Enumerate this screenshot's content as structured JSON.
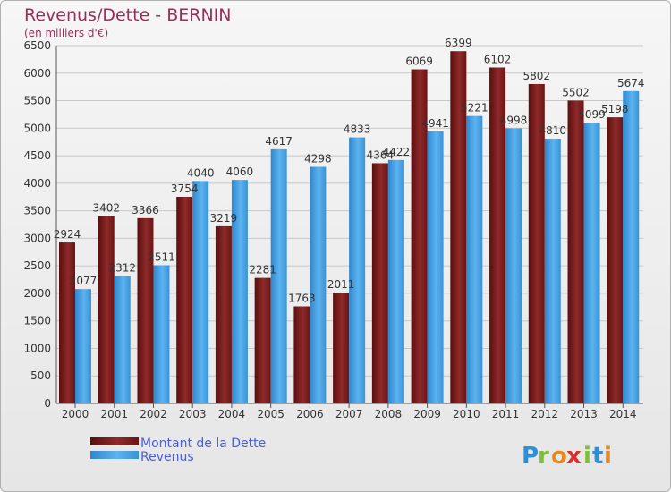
{
  "chart_data": {
    "type": "bar",
    "title": "Revenus/Dette - BERNIN",
    "subtitle": "(en milliers d'€)",
    "categories": [
      "2000",
      "2001",
      "2002",
      "2003",
      "2004",
      "2005",
      "2006",
      "2007",
      "2008",
      "2009",
      "2010",
      "2011",
      "2012",
      "2013",
      "2014"
    ],
    "series": [
      {
        "name": "Montant de la Dette",
        "color": "#7a1b1b",
        "values": [
          2924,
          3402,
          3366,
          3754,
          3219,
          2281,
          1763,
          2011,
          4364,
          6069,
          6399,
          6102,
          5802,
          5502,
          5198
        ],
        "labels": [
          "2924",
          "3402",
          "3366",
          "3754",
          "3219",
          "2281",
          "1763",
          "2011",
          "4364",
          "6069",
          "6399",
          "6102",
          "5802",
          "5502",
          "5198"
        ]
      },
      {
        "name": "Revenus",
        "color": "#4aa6e8",
        "values": [
          2077,
          2312,
          2511,
          4040,
          4060,
          4617,
          4298,
          4833,
          4422,
          4941,
          5221,
          4998,
          4810,
          5099,
          5674
        ],
        "labels": [
          "2077",
          "2312",
          "2511",
          "4040",
          "4060",
          "4617",
          "4298",
          "4833",
          "4422",
          "4941",
          "5221",
          "4998",
          "4810",
          "5099",
          "5674"
        ]
      }
    ],
    "yticks": [
      "0",
      "500",
      "1000",
      "1500",
      "2000",
      "2500",
      "3000",
      "3500",
      "4000",
      "4500",
      "5000",
      "5500",
      "6000",
      "6500"
    ],
    "ylim": [
      0,
      6500
    ],
    "grid": true,
    "legend": "bottom-left"
  },
  "logo": {
    "text": "Proxiti",
    "letters": [
      "P",
      "r",
      "o",
      "x",
      "i",
      "t",
      "i"
    ],
    "colors": [
      "#2f8fd6",
      "#7bbf3a",
      "#e58a1f",
      "#d6332f",
      "#7bbf3a",
      "#2f8fd6",
      "#e58a1f"
    ]
  },
  "colors": {
    "title": "#9b2d5a",
    "legend_text": "#4a5fe0",
    "axis_text": "#333333"
  }
}
